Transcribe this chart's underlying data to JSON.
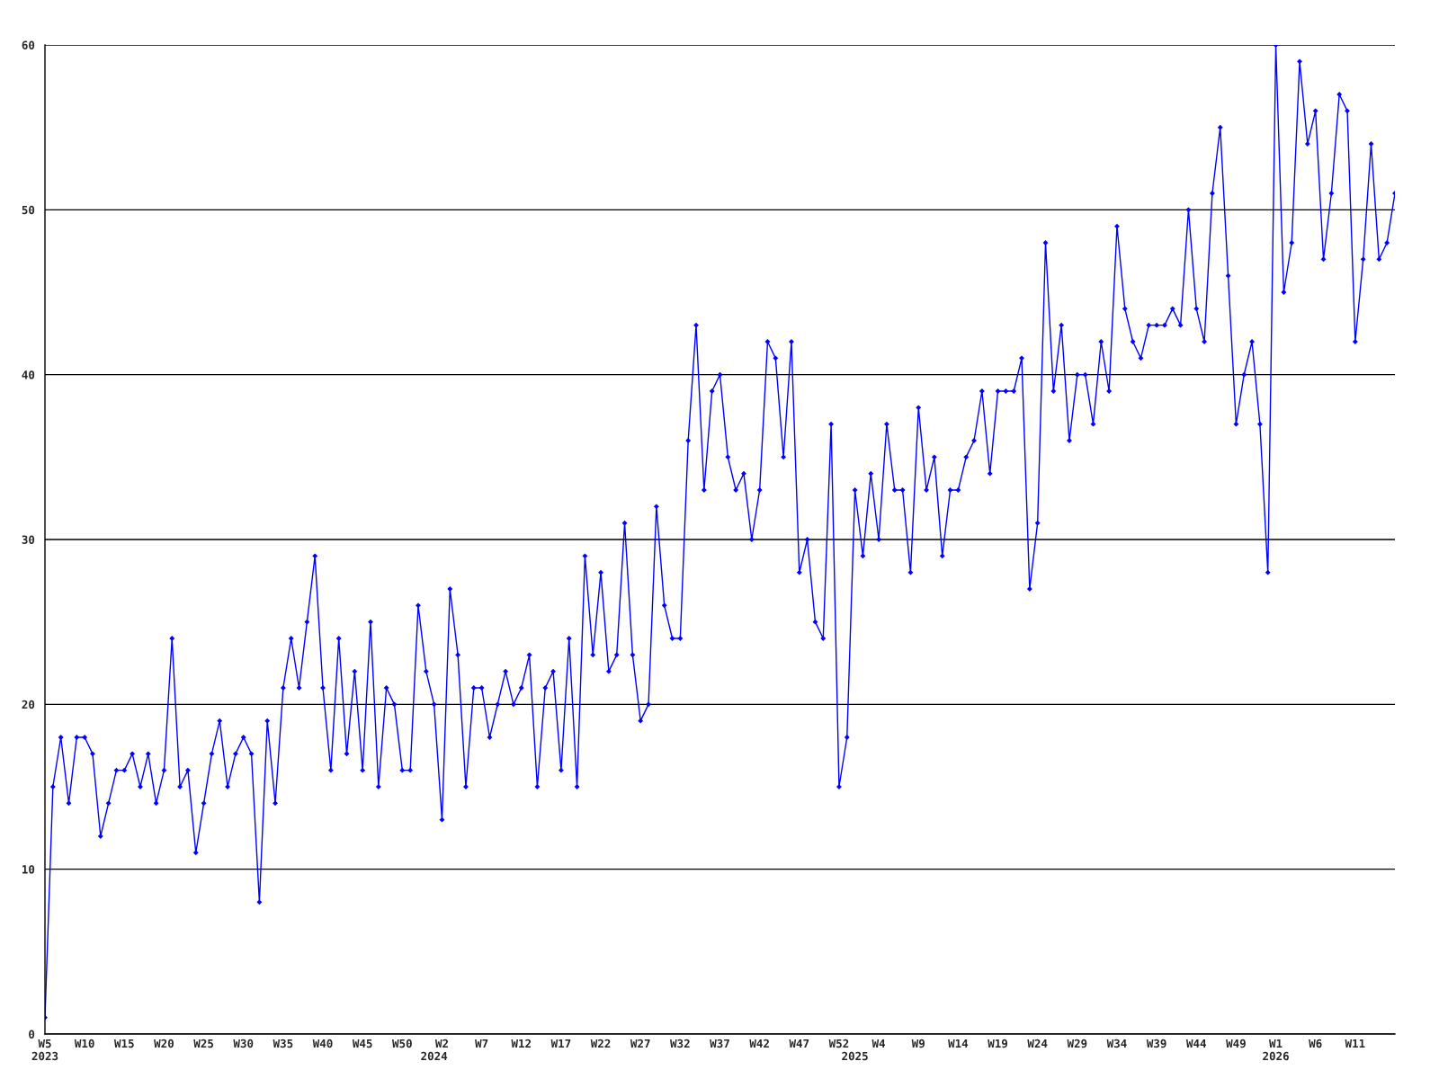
{
  "chart_data": {
    "type": "line",
    "categories": [
      "W5\n2023",
      null,
      null,
      null,
      null,
      "W10",
      null,
      null,
      null,
      null,
      "W15",
      null,
      null,
      null,
      null,
      "W20",
      null,
      null,
      null,
      null,
      "W25",
      null,
      null,
      null,
      null,
      "W30",
      null,
      null,
      null,
      null,
      "W35",
      null,
      null,
      null,
      null,
      "W40",
      null,
      null,
      null,
      null,
      "W45",
      null,
      null,
      null,
      null,
      "W50",
      null,
      null,
      null,
      "\n2024",
      "W2",
      null,
      null,
      null,
      null,
      "W7",
      null,
      null,
      null,
      null,
      "W12",
      null,
      null,
      null,
      null,
      "W17",
      null,
      null,
      null,
      null,
      "W22",
      null,
      null,
      null,
      null,
      "W27",
      null,
      null,
      null,
      null,
      "W32",
      null,
      null,
      null,
      null,
      "W37",
      null,
      null,
      null,
      null,
      "W42",
      null,
      null,
      null,
      null,
      "W47",
      null,
      null,
      null,
      null,
      "W52",
      null,
      "\n2025",
      null,
      null,
      "W4",
      null,
      null,
      null,
      null,
      "W9",
      null,
      null,
      null,
      null,
      "W14",
      null,
      null,
      null,
      null,
      "W19",
      null,
      null,
      null,
      null,
      "W24",
      null,
      null,
      null,
      null,
      "W29",
      null,
      null,
      null,
      null,
      "W34",
      null,
      null,
      null,
      null,
      "W39",
      null,
      null,
      null,
      null,
      "W44",
      null,
      null,
      null,
      null,
      "W49",
      null,
      null,
      null,
      null,
      "W1\n2026",
      null,
      null,
      null,
      null,
      "W6",
      null,
      null,
      null,
      null,
      "W11",
      null,
      null,
      null,
      null,
      null
    ],
    "series": [
      {
        "color": "#0000ff",
        "values": [
          1,
          15,
          18,
          14,
          18,
          18,
          17,
          12,
          14,
          16,
          16,
          17,
          15,
          17,
          14,
          16,
          24,
          15,
          16,
          11,
          14,
          17,
          19,
          15,
          17,
          18,
          17,
          8,
          19,
          14,
          21,
          24,
          21,
          25,
          29,
          21,
          16,
          24,
          17,
          22,
          16,
          25,
          15,
          21,
          20,
          16,
          16,
          26,
          22,
          20,
          13,
          27,
          23,
          15,
          21,
          21,
          18,
          20,
          22,
          20,
          21,
          23,
          15,
          21,
          22,
          16,
          24,
          15,
          29,
          23,
          28,
          22,
          23,
          31,
          23,
          19,
          20,
          32,
          26,
          24,
          24,
          36,
          43,
          33,
          39,
          40,
          35,
          33,
          34,
          30,
          33,
          42,
          41,
          35,
          42,
          28,
          30,
          25,
          24,
          37,
          15,
          18,
          33,
          29,
          34,
          30,
          37,
          33,
          33,
          28,
          38,
          33,
          35,
          29,
          33,
          33,
          35,
          36,
          39,
          34,
          39,
          39,
          39,
          41,
          27,
          31,
          48,
          39,
          43,
          36,
          40,
          40,
          37,
          42,
          39,
          49,
          44,
          42,
          41,
          43,
          43,
          43,
          44,
          43,
          50,
          44,
          42,
          51,
          55,
          46,
          37,
          40,
          42,
          37,
          28,
          60,
          45,
          48,
          59,
          54,
          56,
          47,
          51,
          57,
          56,
          42,
          47,
          54,
          47,
          48,
          51
        ]
      }
    ],
    "ylim": [
      0,
      60
    ],
    "yticks": [
      0,
      10,
      20,
      30,
      40,
      50,
      60
    ],
    "grid": "y",
    "legend": false,
    "marker": "diamond",
    "line_style": "solid"
  }
}
